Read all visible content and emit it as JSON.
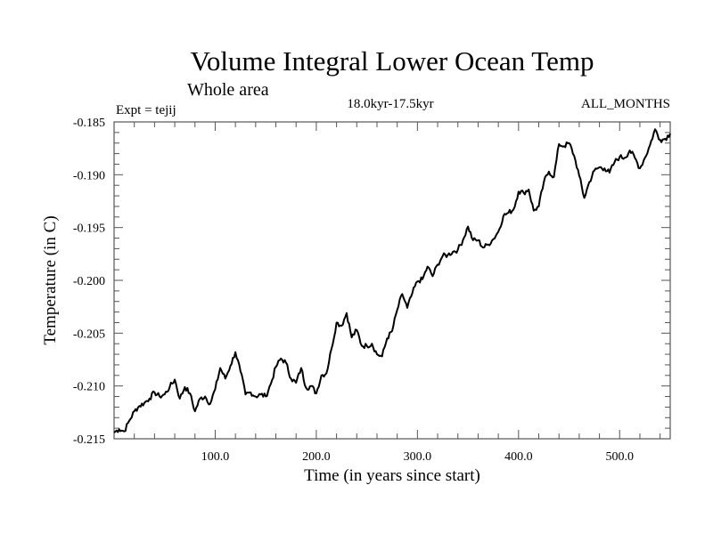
{
  "chart_data": {
    "type": "line",
    "title": "Volume Integral Lower Ocean Temp",
    "subtitle": "Whole area",
    "annotations": {
      "left": "Expt = tejij",
      "center": "18.0kyr-17.5kyr",
      "right": "ALL_MONTHS"
    },
    "xlabel": "Time (in years since start)",
    "ylabel": "Temperature (in C)",
    "xlim": [
      0,
      550
    ],
    "ylim": [
      -0.215,
      -0.185
    ],
    "x_ticks": [
      100,
      200,
      300,
      400,
      500
    ],
    "x_tick_labels": [
      "100.0",
      "200.0",
      "300.0",
      "400.0",
      "500.0"
    ],
    "x_minor_step": 20,
    "y_ticks": [
      -0.185,
      -0.19,
      -0.195,
      -0.2,
      -0.205,
      -0.21,
      -0.215
    ],
    "y_tick_labels": [
      "-0.185",
      "-0.190",
      "-0.195",
      "-0.200",
      "-0.205",
      "-0.210",
      "-0.215"
    ],
    "y_minor_step": 0.001,
    "grid": false,
    "legend": "none",
    "series": [
      {
        "name": "Volume Integral Lower Ocean Temp",
        "color": "#000000",
        "x": [
          0,
          5,
          10,
          15,
          20,
          25,
          30,
          35,
          40,
          45,
          50,
          55,
          60,
          65,
          70,
          75,
          80,
          85,
          90,
          95,
          100,
          105,
          110,
          115,
          120,
          125,
          130,
          135,
          140,
          145,
          150,
          155,
          160,
          165,
          170,
          175,
          180,
          185,
          190,
          195,
          200,
          205,
          210,
          215,
          220,
          225,
          230,
          235,
          240,
          245,
          250,
          255,
          260,
          265,
          270,
          275,
          280,
          285,
          290,
          295,
          300,
          305,
          310,
          315,
          320,
          325,
          330,
          335,
          340,
          345,
          350,
          355,
          360,
          365,
          370,
          375,
          380,
          385,
          390,
          395,
          400,
          405,
          410,
          415,
          420,
          425,
          430,
          435,
          440,
          445,
          450,
          455,
          460,
          465,
          470,
          475,
          480,
          485,
          490,
          495,
          500,
          505,
          510,
          515,
          520,
          525,
          530,
          535,
          540,
          545,
          550
        ],
        "values": [
          -0.2144,
          -0.2141,
          -0.2143,
          -0.2133,
          -0.2124,
          -0.2119,
          -0.2116,
          -0.2112,
          -0.2106,
          -0.211,
          -0.2108,
          -0.2101,
          -0.2094,
          -0.2112,
          -0.2101,
          -0.2107,
          -0.2124,
          -0.2112,
          -0.211,
          -0.2117,
          -0.2103,
          -0.2083,
          -0.2093,
          -0.2081,
          -0.2068,
          -0.2086,
          -0.2108,
          -0.2106,
          -0.211,
          -0.2108,
          -0.211,
          -0.2098,
          -0.2082,
          -0.2074,
          -0.2078,
          -0.2093,
          -0.2097,
          -0.2083,
          -0.2102,
          -0.21,
          -0.2107,
          -0.209,
          -0.2088,
          -0.2065,
          -0.204,
          -0.2043,
          -0.2031,
          -0.2054,
          -0.2047,
          -0.2062,
          -0.2062,
          -0.206,
          -0.207,
          -0.2072,
          -0.2055,
          -0.2048,
          -0.2028,
          -0.2013,
          -0.2026,
          -0.2012,
          -0.2001,
          -0.1999,
          -0.1987,
          -0.1996,
          -0.1985,
          -0.1977,
          -0.1976,
          -0.1973,
          -0.1971,
          -0.1962,
          -0.1949,
          -0.1962,
          -0.1962,
          -0.1969,
          -0.1966,
          -0.1961,
          -0.1954,
          -0.1939,
          -0.1936,
          -0.1933,
          -0.1916,
          -0.1917,
          -0.1914,
          -0.1934,
          -0.193,
          -0.1907,
          -0.1897,
          -0.1902,
          -0.1871,
          -0.1873,
          -0.187,
          -0.1882,
          -0.1901,
          -0.1922,
          -0.1907,
          -0.1896,
          -0.1893,
          -0.1894,
          -0.1898,
          -0.1888,
          -0.1883,
          -0.1884,
          -0.1877,
          -0.1884,
          -0.1894,
          -0.1884,
          -0.1872,
          -0.1857,
          -0.1867,
          -0.1866,
          -0.1861
        ]
      }
    ]
  }
}
